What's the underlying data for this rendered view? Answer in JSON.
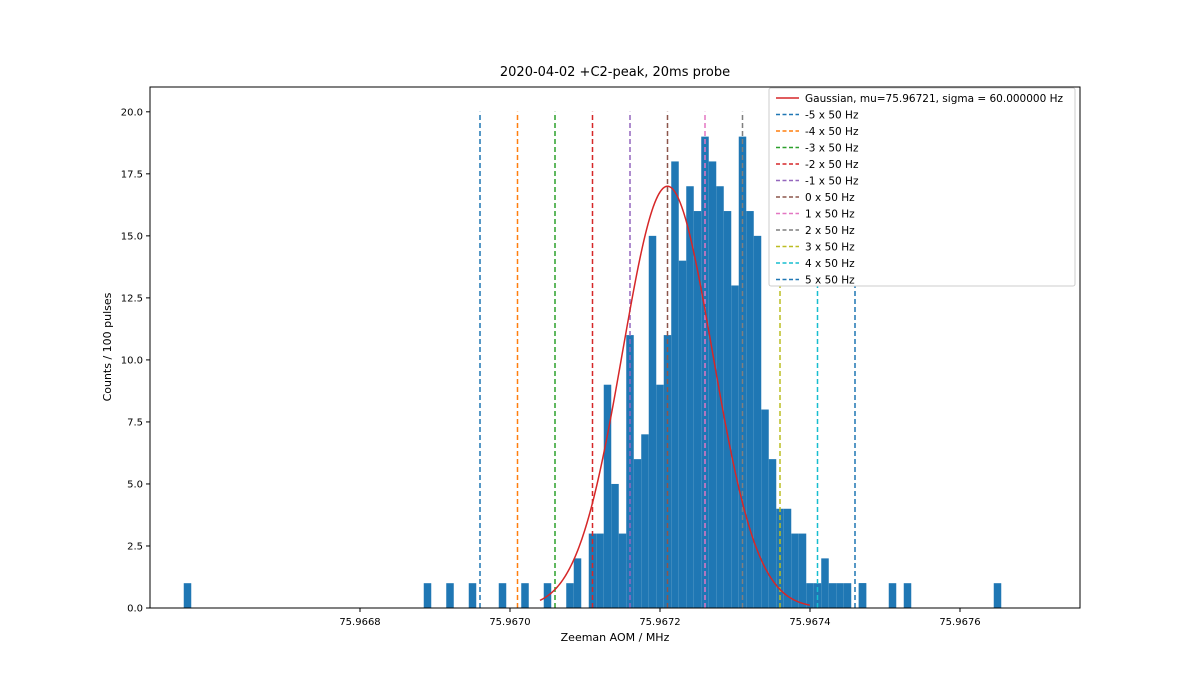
{
  "chart_data": {
    "type": "bar",
    "title": "2020-04-02 +C2-peak, 20ms probe",
    "xlabel": "Zeeman AOM / MHz",
    "ylabel": "Counts / 100 pulses",
    "xlim": [
      75.96652,
      75.96776
    ],
    "ylim": [
      0,
      21
    ],
    "xticks": [
      {
        "value": 75.9668,
        "label": "75.9668"
      },
      {
        "value": 75.967,
        "label": "75.9670"
      },
      {
        "value": 75.9672,
        "label": "75.9672"
      },
      {
        "value": 75.9674,
        "label": "75.9674"
      },
      {
        "value": 75.9676,
        "label": "75.9676"
      }
    ],
    "yticks": [
      {
        "value": 0,
        "label": "0.0"
      },
      {
        "value": 2.5,
        "label": "2.5"
      },
      {
        "value": 5,
        "label": "5.0"
      },
      {
        "value": 7.5,
        "label": "7.5"
      },
      {
        "value": 10,
        "label": "10.0"
      },
      {
        "value": 12.5,
        "label": "12.5"
      },
      {
        "value": 15,
        "label": "15.0"
      },
      {
        "value": 17.5,
        "label": "17.5"
      },
      {
        "value": 20,
        "label": "20.0"
      }
    ],
    "grid": false,
    "legend_position": "top-right",
    "bar_color": "#1f77b4",
    "histogram": {
      "bin_width": 1e-05,
      "bins": [
        {
          "x": 75.96657,
          "count": 1
        },
        {
          "x": 75.96689,
          "count": 1
        },
        {
          "x": 75.96692,
          "count": 1
        },
        {
          "x": 75.96695,
          "count": 1
        },
        {
          "x": 75.96699,
          "count": 1
        },
        {
          "x": 75.96702,
          "count": 1
        },
        {
          "x": 75.96705,
          "count": 1
        },
        {
          "x": 75.96708,
          "count": 1
        },
        {
          "x": 75.96709,
          "count": 2
        },
        {
          "x": 75.96711,
          "count": 3
        },
        {
          "x": 75.96712,
          "count": 3
        },
        {
          "x": 75.96713,
          "count": 9
        },
        {
          "x": 75.96714,
          "count": 5
        },
        {
          "x": 75.96715,
          "count": 3
        },
        {
          "x": 75.96716,
          "count": 11
        },
        {
          "x": 75.96717,
          "count": 6
        },
        {
          "x": 75.96718,
          "count": 7
        },
        {
          "x": 75.96719,
          "count": 15
        },
        {
          "x": 75.9672,
          "count": 9
        },
        {
          "x": 75.96721,
          "count": 11
        },
        {
          "x": 75.96722,
          "count": 18
        },
        {
          "x": 75.96723,
          "count": 14
        },
        {
          "x": 75.96724,
          "count": 17
        },
        {
          "x": 75.96725,
          "count": 16
        },
        {
          "x": 75.96726,
          "count": 19
        },
        {
          "x": 75.96727,
          "count": 18
        },
        {
          "x": 75.96728,
          "count": 17
        },
        {
          "x": 75.96729,
          "count": 16
        },
        {
          "x": 75.9673,
          "count": 13
        },
        {
          "x": 75.96731,
          "count": 19
        },
        {
          "x": 75.96732,
          "count": 16
        },
        {
          "x": 75.96733,
          "count": 15
        },
        {
          "x": 75.96734,
          "count": 8
        },
        {
          "x": 75.96735,
          "count": 6
        },
        {
          "x": 75.96736,
          "count": 4
        },
        {
          "x": 75.96737,
          "count": 4
        },
        {
          "x": 75.96738,
          "count": 3
        },
        {
          "x": 75.96739,
          "count": 3
        },
        {
          "x": 75.9674,
          "count": 1
        },
        {
          "x": 75.96741,
          "count": 1
        },
        {
          "x": 75.96742,
          "count": 2
        },
        {
          "x": 75.96743,
          "count": 1
        },
        {
          "x": 75.96744,
          "count": 1
        },
        {
          "x": 75.96745,
          "count": 1
        },
        {
          "x": 75.96747,
          "count": 1
        },
        {
          "x": 75.96747,
          "count": 1
        },
        {
          "x": 75.96751,
          "count": 1
        },
        {
          "x": 75.96753,
          "count": 1
        },
        {
          "x": 75.96765,
          "count": 1
        }
      ]
    },
    "fit_curve": {
      "name": "Gaussian, mu=75.96721, sigma = 60.000000 Hz",
      "color": "#d62728",
      "mu": 75.96721,
      "sigma": 6e-05,
      "amplitude": 17,
      "x_range": [
        75.96704,
        75.9674
      ]
    },
    "vlines": [
      {
        "name": "-5 x 50 Hz",
        "x": 75.96696,
        "color": "#1f77b4"
      },
      {
        "name": "-4 x 50 Hz",
        "x": 75.96701,
        "color": "#ff7f0e"
      },
      {
        "name": "-3 x 50 Hz",
        "x": 75.96706,
        "color": "#2ca02c"
      },
      {
        "name": "-2 x 50 Hz",
        "x": 75.96711,
        "color": "#d62728"
      },
      {
        "name": "-1 x 50 Hz",
        "x": 75.96716,
        "color": "#9467bd"
      },
      {
        "name": "0 x 50 Hz",
        "x": 75.96721,
        "color": "#8c564b"
      },
      {
        "name": "1 x 50 Hz",
        "x": 75.96726,
        "color": "#e377c2"
      },
      {
        "name": "2 x 50 Hz",
        "x": 75.96731,
        "color": "#7f7f7f"
      },
      {
        "name": "3 x 50 Hz",
        "x": 75.96736,
        "color": "#bcbd22"
      },
      {
        "name": "4 x 50 Hz",
        "x": 75.96741,
        "color": "#17becf"
      },
      {
        "name": "5 x 50 Hz",
        "x": 75.96746,
        "color": "#1f77b4"
      }
    ],
    "vline_ymax": 20
  }
}
